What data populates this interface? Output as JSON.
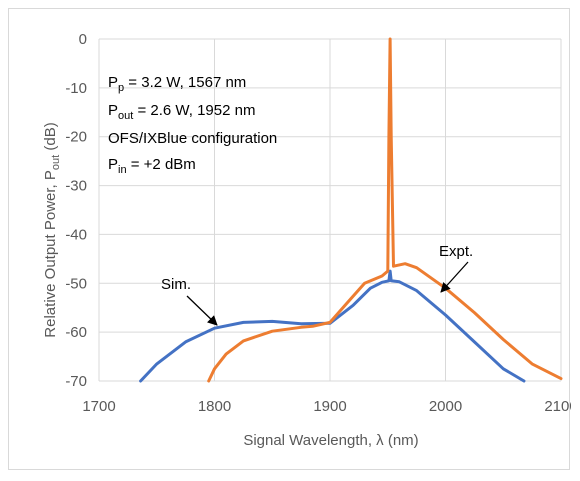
{
  "chart_data": {
    "type": "line",
    "title": "",
    "xlabel_main": "Signal Wavelength, λ (nm)",
    "ylabel_main": "Relative Output Power, P",
    "ylabel_sub": "out",
    "ylabel_end": " (dB)",
    "xlim": [
      1700,
      2100
    ],
    "ylim": [
      -70,
      0
    ],
    "xticks": [
      "1700",
      "1800",
      "1900",
      "2000",
      "2100"
    ],
    "yticks": [
      "0",
      "-10",
      "-20",
      "-30",
      "-40",
      "-50",
      "-60",
      "-70"
    ],
    "grid": true,
    "colors": {
      "sim": "#4472c4",
      "expt": "#ed7d31",
      "grid": "#d9d9d9",
      "text": "#595959"
    },
    "annotations": {
      "line1": {
        "p": "P",
        "sub": "p",
        "rest": " = 3.2 W, 1567 nm"
      },
      "line2": {
        "p": "P",
        "sub": "out",
        "rest": " = 2.6 W, 1952 nm"
      },
      "line3": "OFS/IXBlue configuration",
      "line4": {
        "p": "P",
        "sub": "in",
        "rest": " = +2 dBm"
      },
      "sim_label": "Sim.",
      "expt_label": "Expt."
    },
    "series": [
      {
        "name": "Sim.",
        "x": [
          1736,
          1750,
          1775,
          1800,
          1825,
          1850,
          1875,
          1900,
          1920,
          1935,
          1945,
          1951,
          1952,
          1953,
          1960,
          1975,
          2000,
          2025,
          2050,
          2068
        ],
        "y": [
          -70,
          -66.5,
          -62,
          -59.2,
          -58,
          -57.8,
          -58.3,
          -58.2,
          -54.5,
          -51,
          -49.8,
          -49.5,
          -47.5,
          -49.5,
          -49.7,
          -51.5,
          -56.5,
          -62,
          -67.5,
          -70
        ]
      },
      {
        "name": "Expt.",
        "x": [
          1795,
          1800,
          1810,
          1825,
          1850,
          1875,
          1885,
          1900,
          1915,
          1930,
          1945,
          1950,
          1951,
          1952,
          1953,
          1955,
          1965,
          1975,
          2000,
          2025,
          2050,
          2075,
          2100
        ],
        "y": [
          -70,
          -67.5,
          -64.5,
          -61.8,
          -59.8,
          -59,
          -58.8,
          -58,
          -54,
          -50,
          -48.5,
          -47.5,
          -20,
          0,
          -20,
          -46.5,
          -46,
          -46.8,
          -51,
          -56,
          -61.5,
          -66.5,
          -69.5
        ]
      }
    ]
  }
}
